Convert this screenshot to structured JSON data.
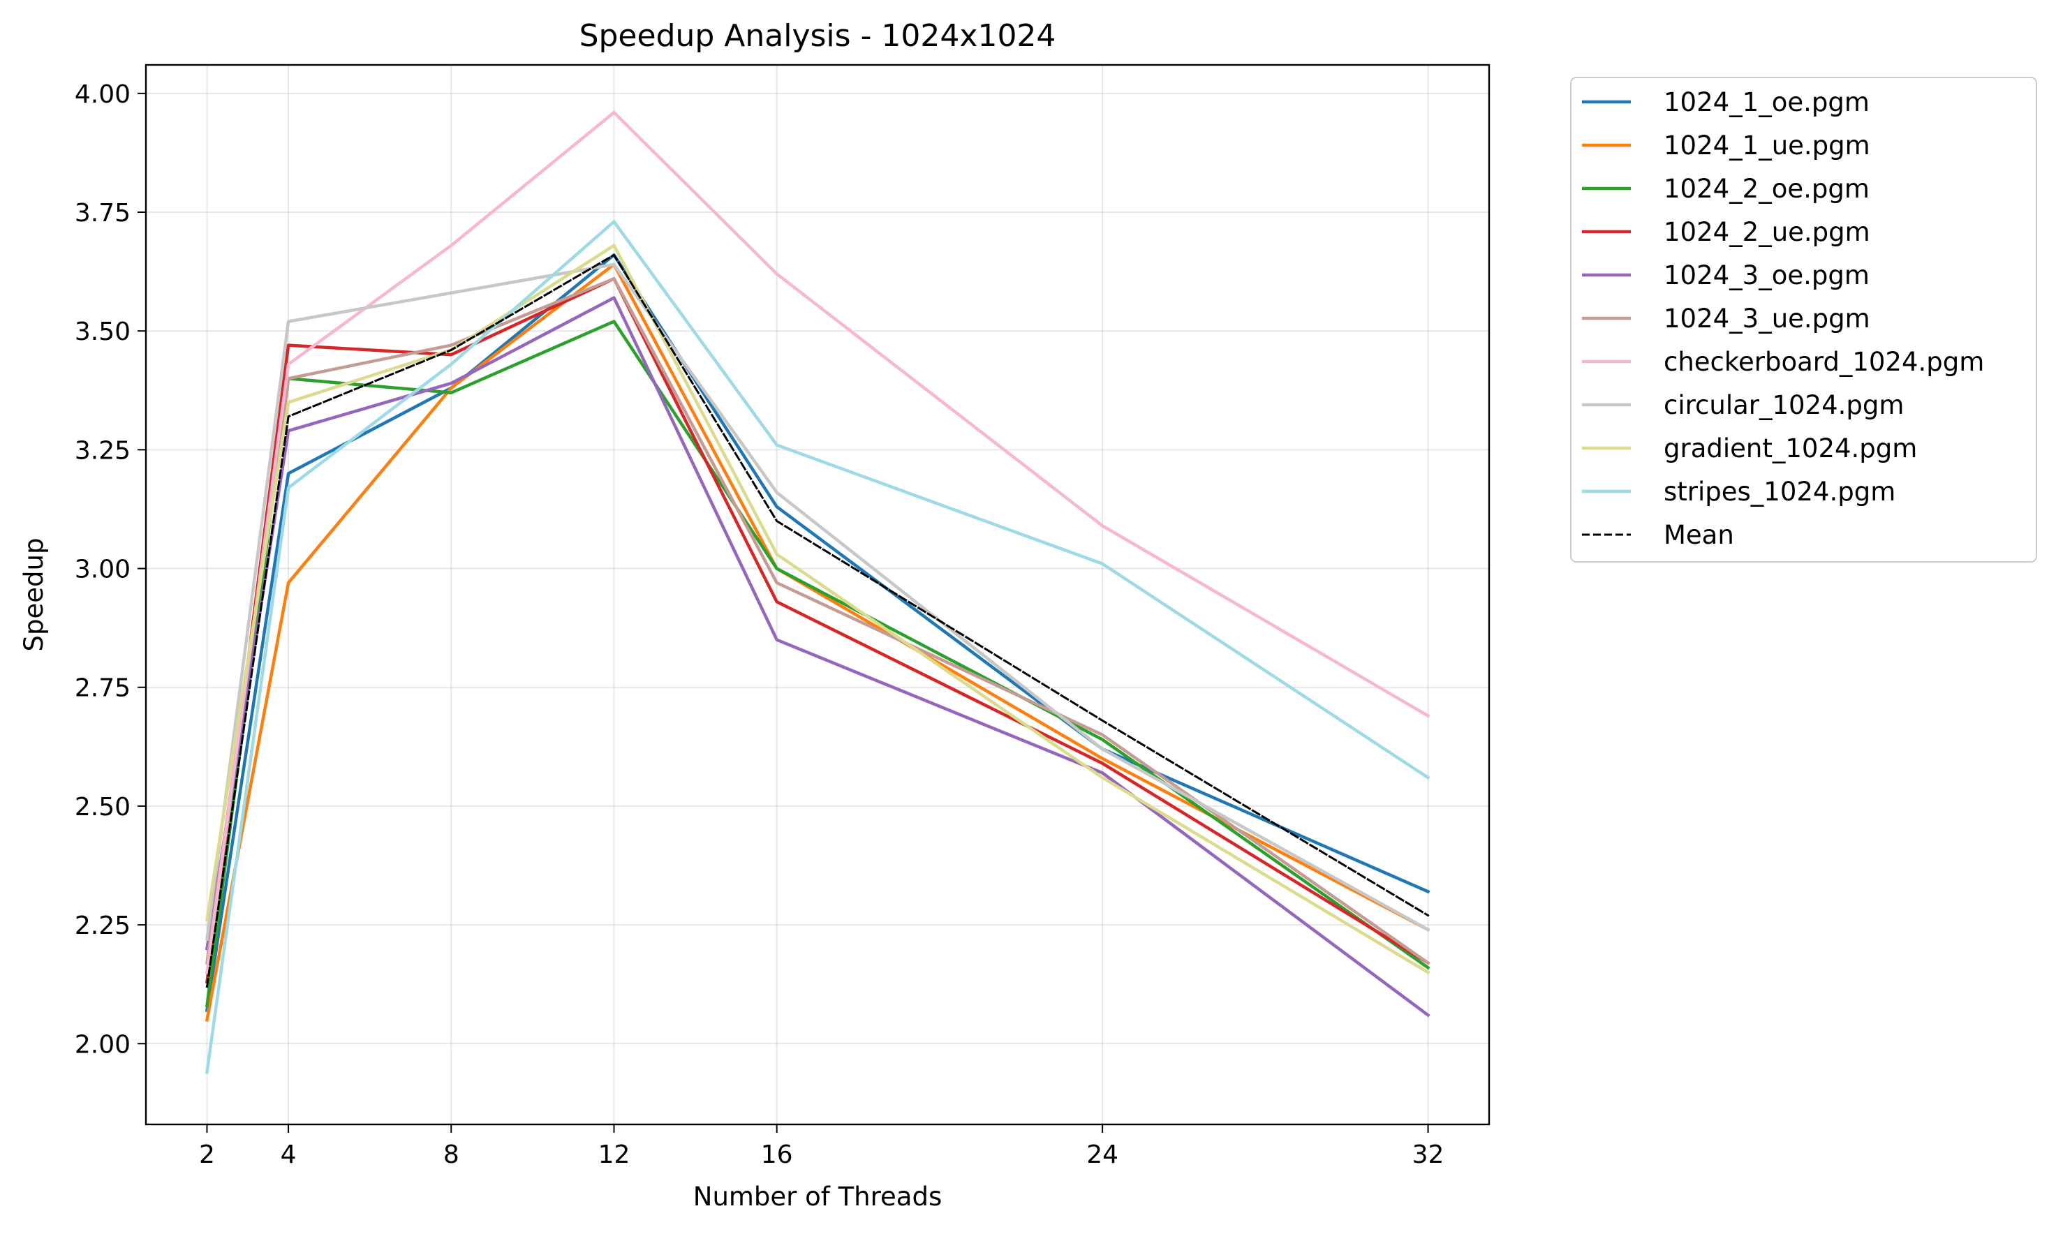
{
  "chart_data": {
    "type": "line",
    "title": "Speedup Analysis - 1024x1024",
    "xlabel": "Number of Threads",
    "ylabel": "Speedup",
    "x": [
      2,
      4,
      8,
      12,
      16,
      24,
      32
    ],
    "x_ticks": [
      "2",
      "4",
      "8",
      "12",
      "16",
      "24",
      "32"
    ],
    "xlim": [
      0.5,
      33.5
    ],
    "ylim": [
      1.83,
      4.06
    ],
    "y_ticks": [
      "2.00",
      "2.25",
      "2.50",
      "2.75",
      "3.00",
      "3.25",
      "3.50",
      "3.75",
      "4.00"
    ],
    "grid": true,
    "legend_position": "outside-upper-right",
    "series": [
      {
        "name": "1024_1_oe.pgm",
        "color": "#1f77b4",
        "values": [
          2.07,
          3.2,
          3.38,
          3.66,
          3.13,
          2.62,
          2.32
        ]
      },
      {
        "name": "1024_1_ue.pgm",
        "color": "#ff7f0e",
        "values": [
          2.05,
          2.97,
          3.38,
          3.64,
          3.0,
          2.6,
          2.24
        ]
      },
      {
        "name": "1024_2_oe.pgm",
        "color": "#2ca02c",
        "values": [
          2.08,
          3.4,
          3.37,
          3.52,
          3.0,
          2.64,
          2.16
        ]
      },
      {
        "name": "1024_2_ue.pgm",
        "color": "#d62728",
        "values": [
          2.13,
          3.47,
          3.45,
          3.61,
          2.93,
          2.59,
          2.17
        ]
      },
      {
        "name": "1024_3_oe.pgm",
        "color": "#9467bd",
        "values": [
          2.2,
          3.29,
          3.39,
          3.57,
          2.85,
          2.57,
          2.06
        ]
      },
      {
        "name": "1024_3_ue.pgm",
        "color": "#c49c94",
        "values": [
          2.17,
          3.4,
          3.47,
          3.61,
          2.97,
          2.65,
          2.17
        ]
      },
      {
        "name": "checkerboard_1024.pgm",
        "color": "#f7b6d2",
        "values": [
          2.15,
          3.43,
          3.68,
          3.96,
          3.62,
          3.09,
          2.69
        ]
      },
      {
        "name": "circular_1024.pgm",
        "color": "#c7c7c7",
        "values": [
          2.22,
          3.52,
          3.58,
          3.64,
          3.16,
          2.62,
          2.24
        ]
      },
      {
        "name": "gradient_1024.pgm",
        "color": "#dbdb8d",
        "values": [
          2.26,
          3.35,
          3.46,
          3.68,
          3.03,
          2.56,
          2.15
        ]
      },
      {
        "name": "stripes_1024.pgm",
        "color": "#9edae5",
        "values": [
          1.94,
          3.17,
          3.43,
          3.73,
          3.26,
          3.01,
          2.56
        ]
      },
      {
        "name": "Mean",
        "color": "#000000",
        "dashed": true,
        "values": [
          2.12,
          3.32,
          3.46,
          3.66,
          3.1,
          2.68,
          2.27
        ]
      }
    ]
  }
}
